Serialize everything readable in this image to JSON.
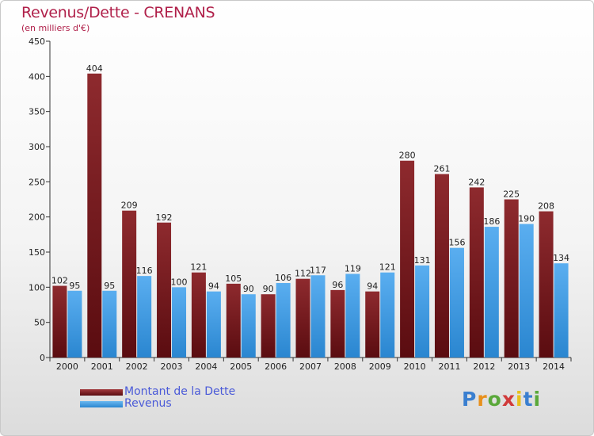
{
  "title": "Revenus/Dette - CRENANS",
  "subtitle": "(en milliers d'€)",
  "logo": {
    "text": "Proxiti",
    "letter_colors": [
      "#3a7fd0",
      "#e8901c",
      "#5aa83a",
      "#d03a3a",
      "#e8c01c",
      "#3a7fd0",
      "#5aa83a"
    ]
  },
  "colors": {
    "debt": "#7a1a1e",
    "debt_light": "#a33a3e",
    "revenue": "#3f9ee8",
    "revenue_light": "#6ab8f0"
  },
  "chart_data": {
    "type": "bar",
    "title": "Revenus/Dette - CRENANS",
    "ylabel": "(en milliers d'€)",
    "categories": [
      "2000",
      "2001",
      "2002",
      "2003",
      "2004",
      "2005",
      "2006",
      "2007",
      "2008",
      "2009",
      "2010",
      "2011",
      "2012",
      "2013",
      "2014"
    ],
    "series": [
      {
        "name": "Montant de la Dette",
        "values": [
          102,
          404,
          209,
          192,
          121,
          105,
          90,
          112,
          96,
          94,
          280,
          261,
          242,
          225,
          208
        ]
      },
      {
        "name": "Revenus",
        "values": [
          95,
          95,
          116,
          100,
          94,
          90,
          106,
          117,
          119,
          121,
          131,
          156,
          186,
          190,
          134
        ]
      }
    ],
    "ylim": [
      0,
      450
    ],
    "yticks": [
      0,
      50,
      100,
      150,
      200,
      250,
      300,
      350,
      400,
      450
    ],
    "grid": false,
    "legend": "bottom-left"
  }
}
